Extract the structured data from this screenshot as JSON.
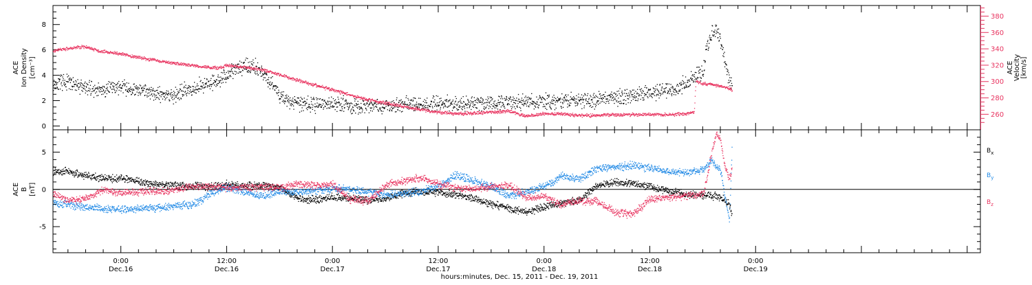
{
  "colors": {
    "black": "#000000",
    "velocity": "#e8335f",
    "by": "#1e88e5",
    "bz": "#e8335f"
  },
  "x_axis": {
    "title": "hours:minutes, Dec. 15, 2011 - Dec. 19, 2011",
    "range_hours": [
      -7.7,
      97.5
    ],
    "ticks": [
      {
        "h": 0,
        "time": "0:00",
        "date": "Dec.16"
      },
      {
        "h": 12,
        "time": "12:00",
        "date": "Dec.16"
      },
      {
        "h": 24,
        "time": "0:00",
        "date": "Dec.17"
      },
      {
        "h": 36,
        "time": "12:00",
        "date": "Dec.17"
      },
      {
        "h": 48,
        "time": "0:00",
        "date": "Dec.18"
      },
      {
        "h": 60,
        "time": "12:00",
        "date": "Dec.18"
      },
      {
        "h": 72,
        "time": "0:00",
        "date": "Dec.19"
      }
    ]
  },
  "chart_data": [
    {
      "type": "scatter",
      "panel": "top",
      "ylabel_left": [
        "ACE",
        "Ion Density",
        "[cm⁻³]"
      ],
      "ylabel_right": [
        "ACE",
        "Velocity",
        "[km/s]"
      ],
      "ylim_left": [
        -0.3,
        9.5
      ],
      "ylim_right": [
        241,
        393
      ],
      "yticks_left": [
        0,
        2,
        4,
        6,
        8
      ],
      "yticks_right": [
        260,
        280,
        300,
        320,
        340,
        360,
        380
      ],
      "series": [
        {
          "axis": "left",
          "x": [
            -7.7,
            -6,
            -4,
            -2,
            0,
            2,
            4,
            6,
            8,
            10,
            12,
            13,
            14,
            15,
            16,
            17,
            18,
            19,
            20,
            22,
            24,
            26,
            28,
            30,
            32,
            34,
            36,
            38,
            40,
            42,
            44,
            46,
            48,
            50,
            52,
            54,
            56,
            58,
            60,
            62,
            63,
            64,
            65,
            66,
            66.5,
            67,
            67.5,
            68,
            68.5,
            69,
            69.3
          ],
          "values": [
            3.3,
            3.5,
            3.0,
            2.9,
            3.1,
            2.8,
            2.6,
            2.4,
            3.0,
            3.4,
            4.0,
            4.5,
            4.8,
            4.7,
            4.3,
            3.4,
            2.5,
            1.9,
            1.8,
            1.7,
            1.8,
            1.6,
            1.6,
            1.7,
            1.7,
            1.7,
            1.8,
            1.7,
            1.9,
            1.8,
            1.9,
            2.0,
            2.0,
            2.0,
            2.1,
            2.1,
            2.2,
            2.4,
            2.6,
            2.9,
            3.0,
            3.4,
            3.8,
            4.3,
            6.5,
            7.2,
            7.6,
            6.8,
            5.0,
            3.7,
            3.2
          ]
        },
        {
          "axis": "right",
          "x": [
            -7.7,
            -6,
            -4,
            -3,
            -2,
            0,
            2,
            4,
            6,
            8,
            10,
            11,
            12,
            14,
            16,
            18,
            20,
            22,
            24,
            26,
            28,
            30,
            32,
            34,
            36,
            38,
            40,
            42,
            44,
            46,
            48,
            50,
            52,
            54,
            56,
            58,
            60,
            62,
            64,
            65,
            65.2,
            66,
            67,
            68,
            69,
            69.3
          ],
          "values": [
            338,
            341,
            343,
            339,
            337,
            334,
            330,
            326,
            323,
            320,
            318,
            317,
            320,
            318,
            315,
            309,
            302,
            296,
            290,
            284,
            278,
            274,
            270,
            266,
            263,
            261,
            262,
            263,
            264,
            258,
            261,
            261,
            259,
            259,
            260,
            260,
            260,
            260,
            261,
            263,
            300,
            298,
            297,
            295,
            292,
            290
          ]
        }
      ]
    },
    {
      "type": "scatter",
      "panel": "bottom",
      "ylabel_left": [
        "ACE",
        "B",
        "[nT]"
      ],
      "ylim": [
        -8.5,
        8.0
      ],
      "yticks": [
        -5,
        0,
        5
      ],
      "legend": [
        {
          "name": "B",
          "sub": "x",
          "color": "#000000"
        },
        {
          "name": "B",
          "sub": "y",
          "color": "#1e88e5"
        },
        {
          "name": "B",
          "sub": "z",
          "color": "#e8335f"
        }
      ],
      "series": [
        {
          "name": "Bx",
          "x": [
            -7.7,
            -6,
            -4,
            -2,
            0,
            2,
            4,
            6,
            8,
            10,
            12,
            14,
            16,
            18,
            20,
            22,
            24,
            26,
            28,
            30,
            32,
            34,
            36,
            38,
            40,
            42,
            44,
            46,
            48,
            50,
            52,
            54,
            56,
            58,
            60,
            62,
            64,
            66,
            67,
            68,
            69,
            69.3
          ],
          "values": [
            2.5,
            2.4,
            1.9,
            1.6,
            1.5,
            1.1,
            0.8,
            0.6,
            0.5,
            0.4,
            0.7,
            0.5,
            0.6,
            0.3,
            -1.2,
            -1.3,
            -1.0,
            -1.1,
            -1.4,
            -1.2,
            -0.5,
            -0.2,
            -0.3,
            -0.7,
            -1.2,
            -1.9,
            -2.5,
            -3.0,
            -2.3,
            -1.8,
            -1.4,
            0.6,
            1.0,
            0.8,
            0.4,
            -0.2,
            -0.6,
            -0.7,
            -0.8,
            -1.0,
            -2.0,
            -3.5
          ]
        },
        {
          "name": "By",
          "x": [
            -7.7,
            -6,
            -4,
            -2,
            0,
            2,
            4,
            6,
            8,
            9,
            10,
            12,
            14,
            16,
            18,
            20,
            22,
            24,
            26,
            28,
            30,
            32,
            34,
            36,
            38,
            40,
            42,
            44,
            46,
            48,
            50,
            52,
            54,
            56,
            58,
            60,
            62,
            64,
            66,
            67,
            68,
            68.5,
            69,
            69.3
          ],
          "values": [
            -1.8,
            -2.0,
            -2.3,
            -2.6,
            -2.6,
            -2.5,
            -2.4,
            -2.2,
            -2.0,
            -1.5,
            -0.5,
            0.3,
            -0.4,
            -0.9,
            -0.2,
            -0.3,
            -0.1,
            0.2,
            0.0,
            -0.3,
            -0.7,
            -0.5,
            -0.2,
            0.5,
            2.0,
            1.2,
            0.4,
            -0.8,
            -0.3,
            0.5,
            1.8,
            1.4,
            2.9,
            3.0,
            3.3,
            2.9,
            2.5,
            2.3,
            2.7,
            3.8,
            2.5,
            -1.0,
            -4.0,
            6.0
          ]
        },
        {
          "name": "Bz",
          "x": [
            -7.7,
            -6,
            -4,
            -2,
            0,
            2,
            4,
            6,
            8,
            10,
            12,
            14,
            16,
            18,
            20,
            22,
            24,
            26,
            28,
            30,
            32,
            34,
            36,
            38,
            40,
            42,
            44,
            46,
            48,
            50,
            52,
            54,
            56,
            58,
            60,
            62,
            64,
            66,
            66.5,
            67,
            67.5,
            68,
            68.5,
            69,
            69.3
          ],
          "values": [
            -0.5,
            -1.5,
            -1.2,
            0.0,
            -0.5,
            -0.3,
            -0.2,
            0.0,
            0.4,
            0.5,
            0.2,
            0.3,
            0.4,
            0.3,
            0.8,
            0.6,
            0.7,
            -1.3,
            -1.5,
            0.6,
            1.2,
            1.6,
            0.7,
            0.3,
            0.1,
            0.4,
            0.6,
            -1.0,
            -1.0,
            -2.0,
            -1.5,
            -1.5,
            -3.0,
            -3.3,
            -1.3,
            -1.0,
            -0.8,
            -0.6,
            2.0,
            5.0,
            7.5,
            6.5,
            3.0,
            1.5,
            2.8
          ]
        }
      ]
    }
  ]
}
